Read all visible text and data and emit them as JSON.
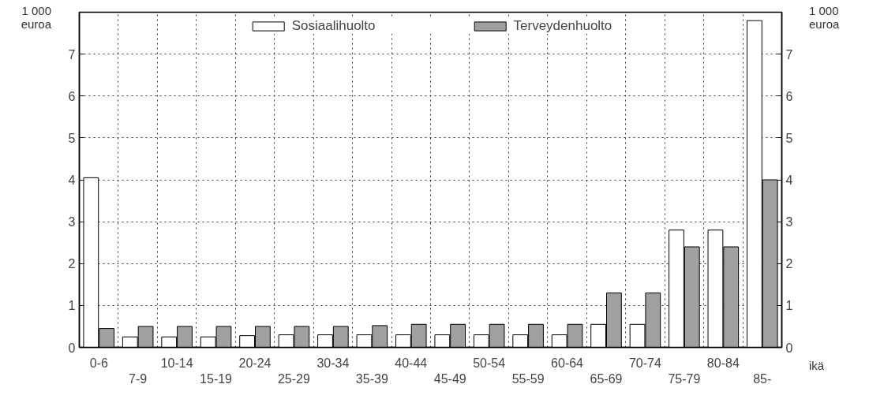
{
  "chart_data": {
    "type": "bar",
    "ylabel": "1 000\neuroa",
    "y2label": "1 000\neuroa",
    "xlabel": "ikä",
    "categories": [
      "0-6",
      "7-9",
      "10-14",
      "15-19",
      "20-24",
      "25-29",
      "30-34",
      "35-39",
      "40-44",
      "45-49",
      "50-54",
      "55-59",
      "60-64",
      "65-69",
      "70-74",
      "75-79",
      "80-84",
      "85-"
    ],
    "series": [
      {
        "name": "Sosiaalihuolto",
        "color": "#ffffff",
        "values": [
          4.05,
          0.25,
          0.25,
          0.25,
          0.28,
          0.3,
          0.3,
          0.3,
          0.3,
          0.3,
          0.3,
          0.3,
          0.3,
          0.55,
          0.55,
          2.8,
          2.8,
          7.8
        ]
      },
      {
        "name": "Terveydenhuolto",
        "color": "#a0a0a0",
        "values": [
          0.45,
          0.5,
          0.5,
          0.5,
          0.5,
          0.5,
          0.5,
          0.52,
          0.55,
          0.55,
          0.55,
          0.55,
          0.55,
          1.3,
          1.3,
          2.4,
          2.4,
          4.0
        ]
      }
    ],
    "ylim": [
      0,
      8
    ],
    "yticks": [
      0,
      1,
      2,
      3,
      4,
      5,
      6,
      7
    ],
    "y2lim": [
      0,
      8
    ],
    "y2ticks": [
      0,
      1,
      2,
      3,
      4,
      5,
      6,
      7
    ],
    "grid": true,
    "legend": "top"
  }
}
